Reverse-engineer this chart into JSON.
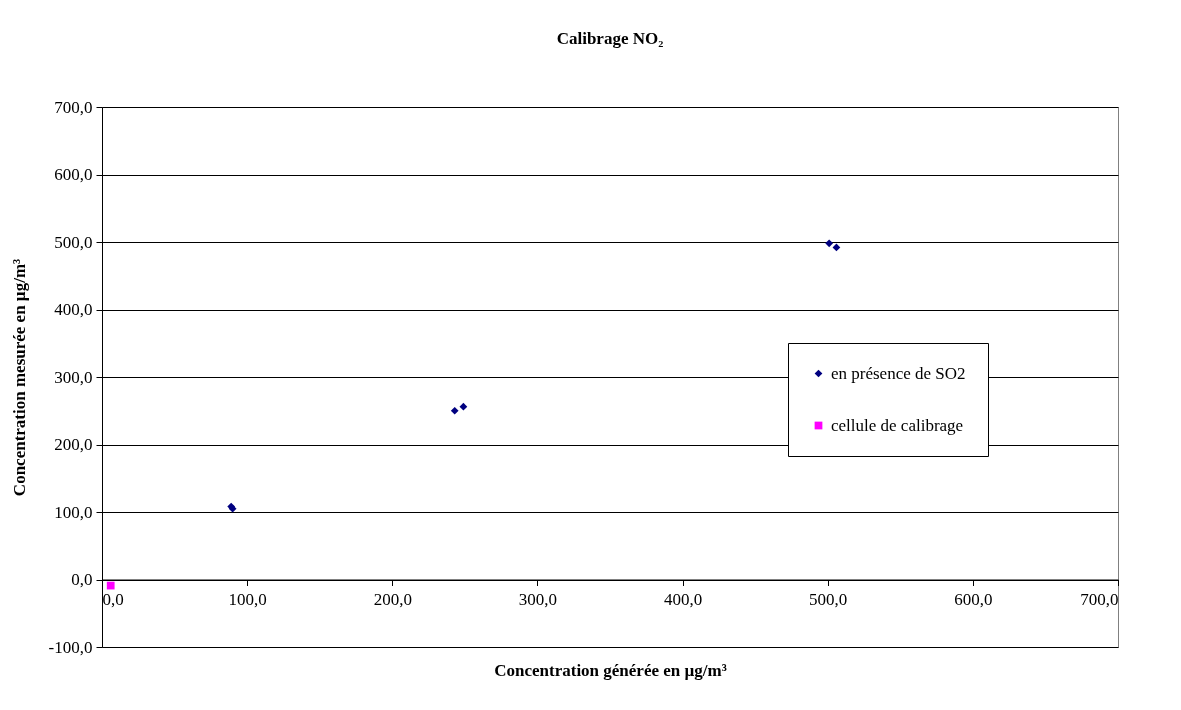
{
  "chart_data": {
    "type": "scatter",
    "title": "Calibrage NO₂",
    "xlabel": "Concentration générée en µg/m³",
    "ylabel": "Concentration mesurée en µg/m³",
    "xlim": [
      0,
      700
    ],
    "ylim": [
      -100,
      700
    ],
    "xticks": [
      {
        "value": 0,
        "label": "0,0"
      },
      {
        "value": 100,
        "label": "100,0"
      },
      {
        "value": 200,
        "label": "200,0"
      },
      {
        "value": 300,
        "label": "300,0"
      },
      {
        "value": 400,
        "label": "400,0"
      },
      {
        "value": 500,
        "label": "500,0"
      },
      {
        "value": 600,
        "label": "600,0"
      },
      {
        "value": 700,
        "label": "700,0"
      }
    ],
    "yticks": [
      {
        "value": -100,
        "label": "-100,0"
      },
      {
        "value": 0,
        "label": "0,0"
      },
      {
        "value": 100,
        "label": "100,0"
      },
      {
        "value": 200,
        "label": "200,0"
      },
      {
        "value": 300,
        "label": "300,0"
      },
      {
        "value": 400,
        "label": "400,0"
      },
      {
        "value": 500,
        "label": "500,0"
      },
      {
        "value": 600,
        "label": "600,0"
      },
      {
        "value": 700,
        "label": "700,0"
      }
    ],
    "grid": "y",
    "legend": "right",
    "series": [
      {
        "name": "en présence de SO2",
        "color": "#000080",
        "marker": "diamond",
        "x": [
          89,
          90,
          243,
          249,
          501,
          506
        ],
        "values": [
          108,
          105,
          250,
          256,
          498,
          492
        ]
      },
      {
        "name": "cellule de calibrage",
        "color": "#ff00ff",
        "marker": "square",
        "x": [
          6
        ],
        "values": [
          -9
        ]
      }
    ]
  }
}
